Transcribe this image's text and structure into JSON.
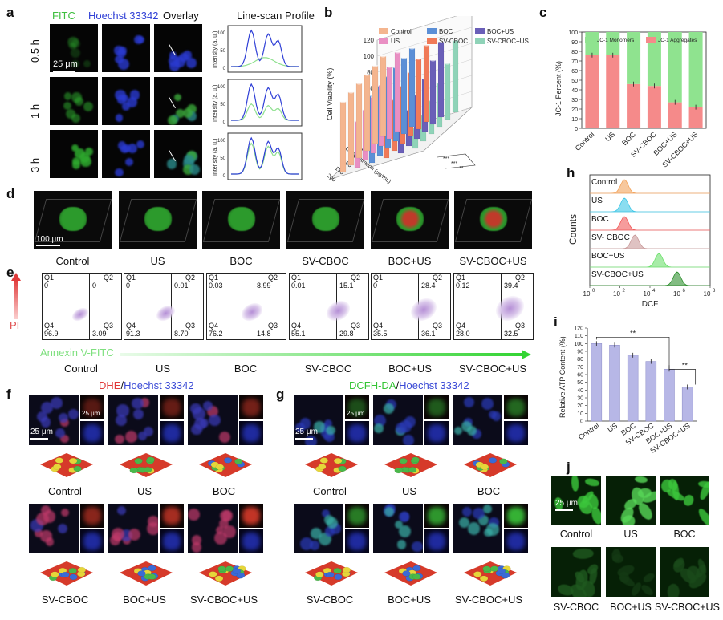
{
  "panels": {
    "a": "a",
    "b": "b",
    "c": "c",
    "d": "d",
    "e": "e",
    "f": "f",
    "g": "g",
    "h": "h",
    "i": "i",
    "j": "j"
  },
  "a": {
    "ch_fitc": "FITC",
    "ch_hoechst": "Hoechst 33342",
    "ch_overlay": "Overlay",
    "linescan_title": "Line-scan Profile",
    "rows": [
      "0.5 h",
      "1 h",
      "3 h"
    ],
    "scale": "25 μm",
    "ylabel": "Intensity (a. u.)",
    "colors": {
      "fitc": "#3fbf3f",
      "hoechst": "#2f3fd6"
    }
  },
  "d": {
    "scale": "100 μm",
    "labels": [
      "Control",
      "US",
      "BOC",
      "SV-CBOC",
      "BOC+US",
      "SV-CBOC+US"
    ]
  },
  "e": {
    "ylabel": "PI",
    "xlabel": "Annexin V-FITC",
    "labels": [
      "Control",
      "US",
      "BOC",
      "SV-CBOC",
      "BOC+US",
      "SV-CBOC+US"
    ],
    "plots": [
      {
        "q1": "0",
        "q2": "0",
        "q3": "3.09",
        "q4": "96.9"
      },
      {
        "q1": "0",
        "q2": "0.01",
        "q3": "8.70",
        "q4": "91.3"
      },
      {
        "q1": "0.03",
        "q2": "8.99",
        "q3": "14.8",
        "q4": "76.2"
      },
      {
        "q1": "0.01",
        "q2": "15.1",
        "q3": "29.8",
        "q4": "55.1"
      },
      {
        "q1": "0",
        "q2": "28.4",
        "q3": "36.1",
        "q4": "35.5"
      },
      {
        "q1": "0.12",
        "q2": "39.4",
        "q3": "32.5",
        "q4": "28.0"
      }
    ],
    "qnames": {
      "q1": "Q1",
      "q2": "Q2",
      "q3": "Q3",
      "q4": "Q4"
    }
  },
  "f": {
    "title_a": "DHE",
    "title_sep": "/",
    "title_b": "Hoechst 33342",
    "scale_main": "25 μm",
    "scale_small": "25 μm",
    "labels_top": [
      "Control",
      "US",
      "BOC"
    ],
    "labels_bottom": [
      "SV-CBOC",
      "BOC+US",
      "SV-CBOC+US"
    ]
  },
  "g": {
    "title_a": "DCFH-DA",
    "title_sep": "/",
    "title_b": "Hoechst 33342",
    "scale_main": "25 μm",
    "scale_small": "25 μm",
    "labels_top": [
      "Control",
      "US",
      "BOC"
    ],
    "labels_bottom": [
      "SV-CBOC",
      "BOC+US",
      "SV-CBOC+US"
    ]
  },
  "h": {
    "ylabel": "Counts",
    "xlabel": "DCF",
    "rows": [
      "Control",
      "US",
      "BOC",
      "SV- CBOC",
      "BOC+US",
      "SV-CBOC+US"
    ],
    "ticks": [
      "10",
      "10",
      "10",
      "10",
      "10"
    ],
    "exps": [
      "0",
      "2",
      "4",
      "6",
      "8"
    ]
  },
  "j": {
    "scale": "25 μm",
    "labels_top": [
      "Control",
      "US",
      "BOC"
    ],
    "labels_bottom": [
      "SV-CBOC",
      "BOC+US",
      "SV-CBOC+US"
    ]
  },
  "chart_data": [
    {
      "panel": "b",
      "type": "bar",
      "title": "",
      "ylabel": "Cell Viability (%)",
      "xlabel": "Concentration (μg/mL)",
      "ylim": [
        0,
        120
      ],
      "yticks": [
        "0",
        "20",
        "40",
        "60",
        "80",
        "100",
        "120"
      ],
      "categories": [
        "0",
        "20",
        "50",
        "100",
        "150",
        "200"
      ],
      "series": [
        {
          "name": "Control",
          "color": "#f4b58f",
          "values": [
            100,
            97,
            95,
            93,
            91,
            88
          ]
        },
        {
          "name": "US",
          "color": "#e98fc3",
          "values": [
            99,
            90,
            76,
            70,
            63,
            58
          ]
        },
        {
          "name": "BOC",
          "color": "#5b8fd6",
          "values": [
            98,
            95,
            92,
            90,
            87,
            84
          ]
        },
        {
          "name": "SV-CBOC",
          "color": "#f07a58",
          "values": [
            96,
            88,
            80,
            72,
            64,
            56
          ]
        },
        {
          "name": "BOC+US",
          "color": "#6a5fb8",
          "values": [
            94,
            80,
            66,
            55,
            45,
            38
          ]
        },
        {
          "name": "SV-CBOC+US",
          "color": "#8fd3b8",
          "values": [
            90,
            70,
            55,
            42,
            33,
            26
          ]
        }
      ],
      "marks": [
        "***",
        "***",
        "**"
      ]
    },
    {
      "panel": "c",
      "type": "bar",
      "title": "",
      "ylabel": "JC-1 Percent (%)",
      "ylim": [
        0,
        100
      ],
      "yticks": [
        "0",
        "10",
        "20",
        "30",
        "40",
        "50",
        "60",
        "70",
        "80",
        "90",
        "100"
      ],
      "categories": [
        "Control",
        "US",
        "BOC",
        "SV-CBOC",
        "BOC+US",
        "SV-CBOC+US"
      ],
      "series": [
        {
          "name": "JC-1 Monomers",
          "color": "#8fe38f",
          "values": [
            24,
            24,
            54,
            56,
            73,
            78
          ]
        },
        {
          "name": "JC-1 Aggregates",
          "color": "#f58a8a",
          "values": [
            76,
            76,
            46,
            44,
            27,
            22
          ]
        }
      ]
    },
    {
      "panel": "h",
      "type": "area",
      "title": "",
      "xlabel": "DCF",
      "ylabel": "Counts",
      "x_scale": "log",
      "xlim": [
        1,
        100000000
      ],
      "series": [
        {
          "name": "Control",
          "color": "#f2a35c",
          "peak_log10": 2.3
        },
        {
          "name": "US",
          "color": "#3cc6e6",
          "peak_log10": 2.3
        },
        {
          "name": "BOC",
          "color": "#f05a5a",
          "peak_log10": 2.3
        },
        {
          "name": "SV- CBOC",
          "color": "#c99a9a",
          "peak_log10": 3.0
        },
        {
          "name": "BOC+US",
          "color": "#6ee06e",
          "peak_log10": 4.6
        },
        {
          "name": "SV-CBOC+US",
          "color": "#2e8f2e",
          "peak_log10": 5.8
        }
      ]
    },
    {
      "panel": "i",
      "type": "bar",
      "title": "",
      "ylabel": "Relative ATP Content (%)",
      "ylim": [
        0,
        120
      ],
      "yticks": [
        "0",
        "10",
        "20",
        "30",
        "40",
        "50",
        "60",
        "70",
        "80",
        "90",
        "100",
        "110",
        "120"
      ],
      "categories": [
        "Control",
        "US",
        "BOC",
        "SV-CBOC",
        "BOC+US",
        "SV-CBOC+US"
      ],
      "values": [
        100,
        98,
        85,
        77,
        67,
        44
      ],
      "color": "#b7b7e6",
      "significance": [
        {
          "from": 0,
          "to": 4,
          "label": "**"
        },
        {
          "from": 4,
          "to": 5,
          "label": "**"
        }
      ]
    }
  ]
}
